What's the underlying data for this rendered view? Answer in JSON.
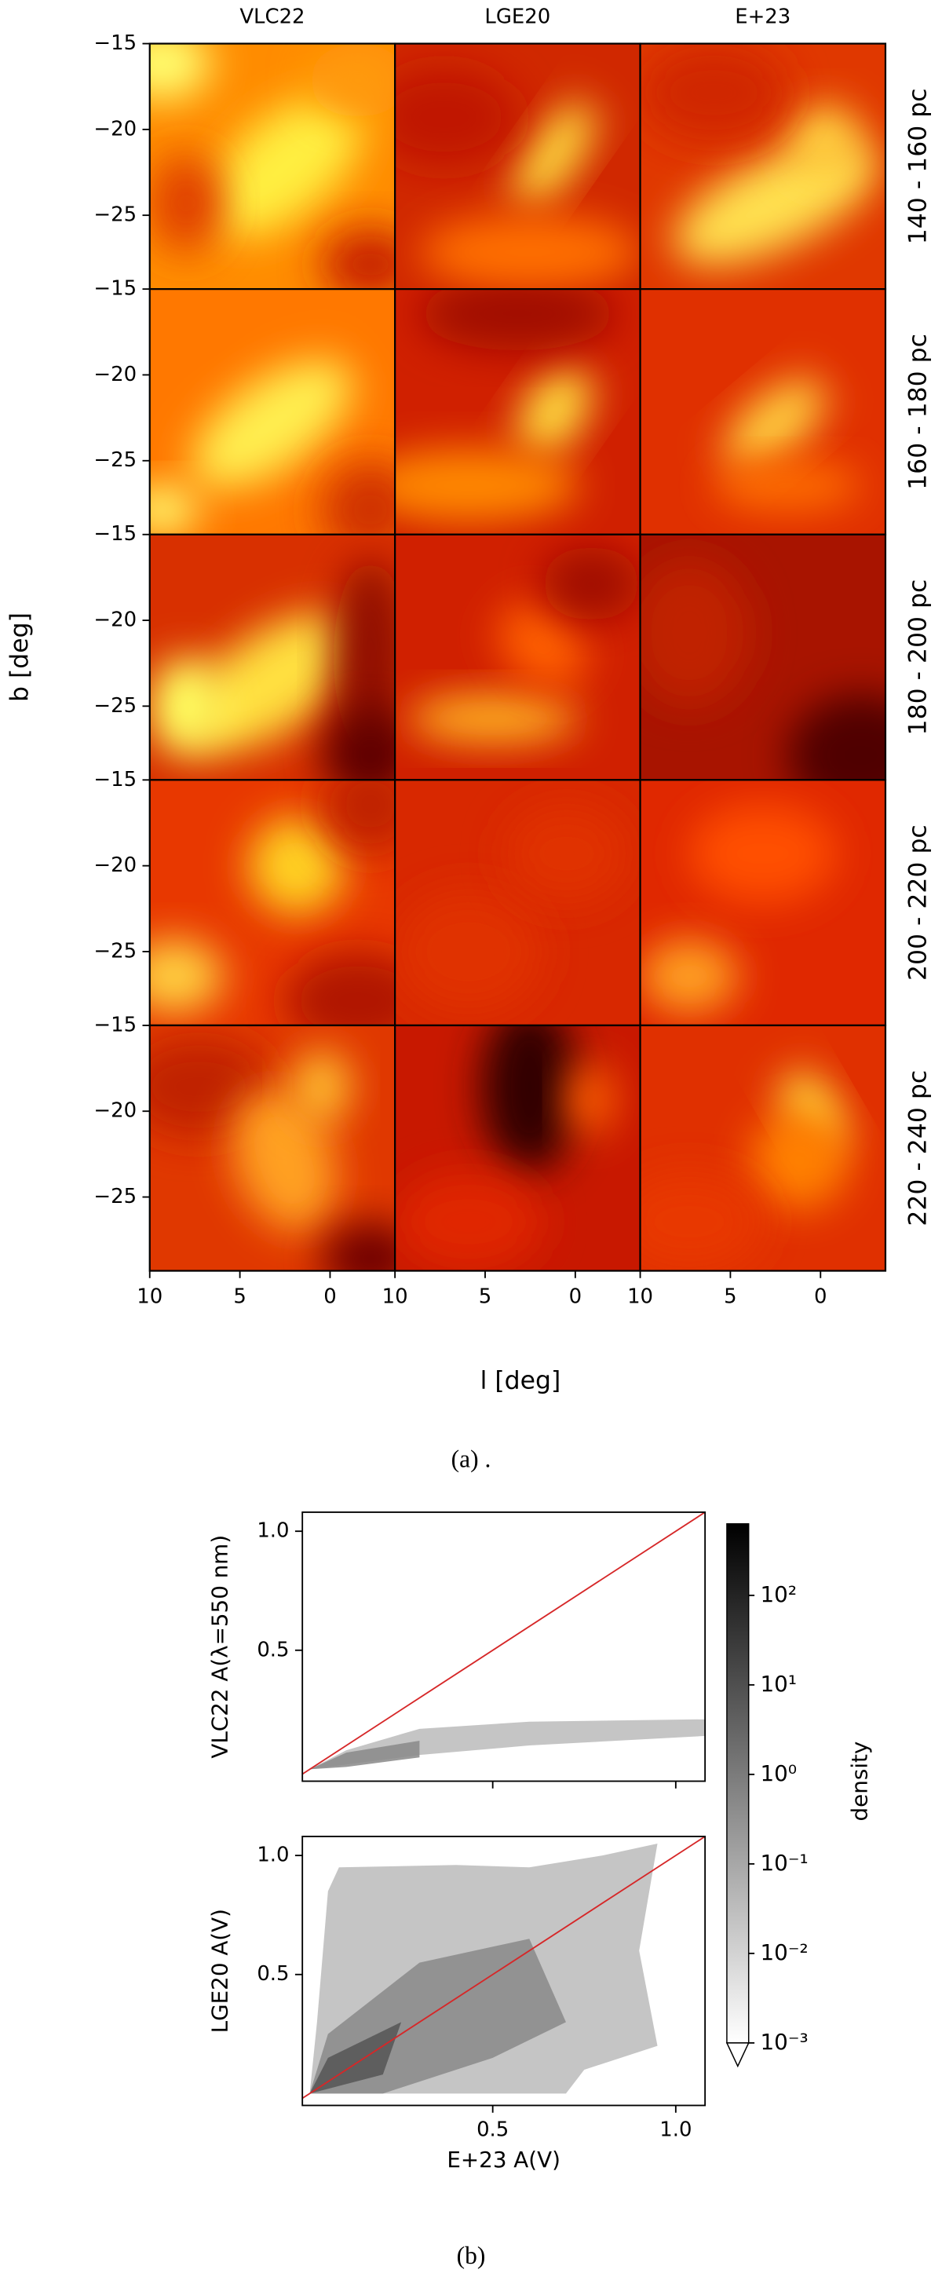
{
  "chart_data": [
    {
      "type": "heatmap",
      "columns": [
        "VLC22",
        "LGE20",
        "E+23"
      ],
      "rows": [
        "140 - 160 pc",
        "160 - 180 pc",
        "180 - 200 pc",
        "200 - 220 pc",
        "220 - 240 pc"
      ],
      "xlabel": "l [deg]",
      "ylabel": "b [deg]",
      "xlim": [
        10,
        -3.6
      ],
      "xticks": [
        10,
        5,
        0
      ],
      "ylim": [
        -15,
        -29.3
      ],
      "yticks": [
        {
          "value": -15,
          "label": "−15"
        },
        {
          "value": -20,
          "label": "−20"
        },
        {
          "value": -25,
          "label": "−25"
        }
      ],
      "caption": "(a) ."
    },
    {
      "type": "hist2d",
      "ylabel": "VLC22 A(λ=550 nm)",
      "xlim": [
        -0.02,
        1.08
      ],
      "ylim": [
        -0.05,
        1.08
      ],
      "yticks": [
        0.5,
        {
          "value": 1,
          "label": "1.0"
        }
      ],
      "diagonal_color": "#d62728"
    },
    {
      "type": "hist2d",
      "xlabel": "E+23 A(V)",
      "ylabel": "LGE20 A(V)",
      "xlim": [
        -0.02,
        1.08
      ],
      "ylim": [
        -0.05,
        1.08
      ],
      "xticks": [
        0.5,
        {
          "value": 1,
          "label": "1.0"
        }
      ],
      "yticks": [
        0.5,
        {
          "value": 1,
          "label": "1.0"
        }
      ],
      "diagonal_color": "#d62728"
    },
    {
      "type": "colorbar",
      "label": "density",
      "log": true,
      "lim": [
        0.001,
        630
      ],
      "ticks": [
        {
          "value": 100,
          "label": "10²"
        },
        {
          "value": 10,
          "label": "10¹"
        },
        {
          "value": 1,
          "label": "10⁰"
        },
        {
          "value": 0.1,
          "label": "10⁻¹"
        },
        {
          "value": 0.01,
          "label": "10⁻²"
        },
        {
          "value": 0.001,
          "label": "10⁻³"
        }
      ],
      "caption": "(b)"
    }
  ]
}
